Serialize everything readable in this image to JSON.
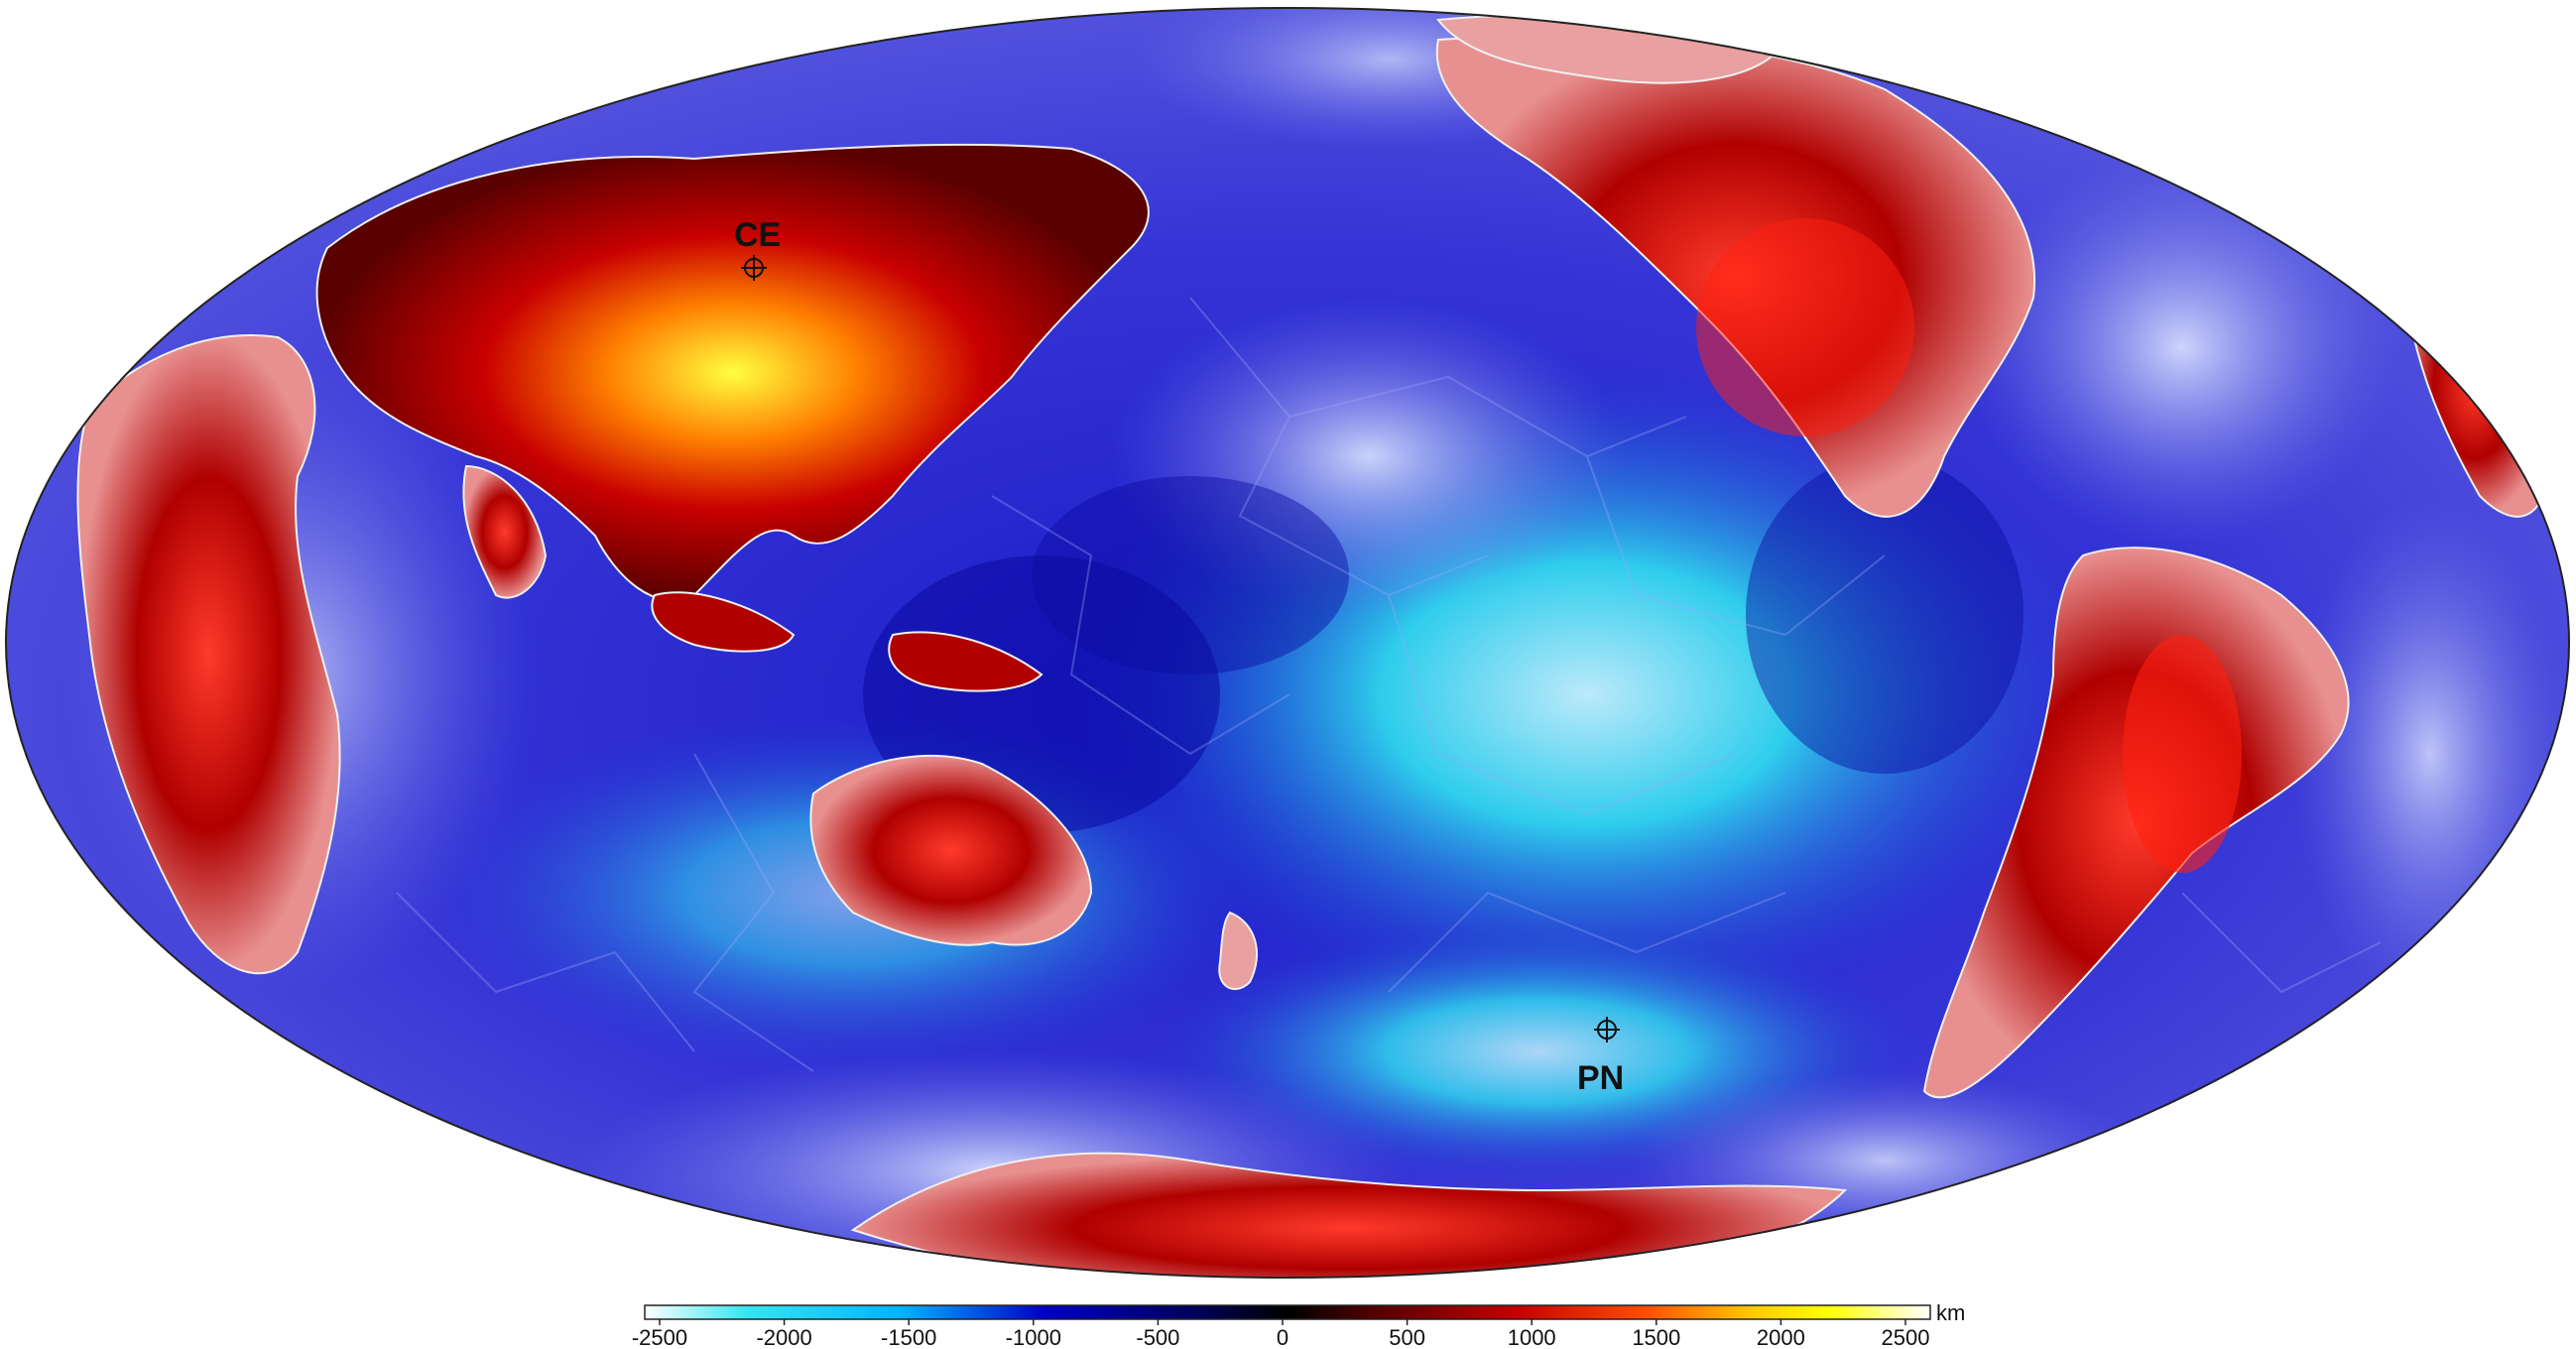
{
  "map": {
    "projection": "Mollweide (Pacific-centred)",
    "markers": [
      {
        "id": "CE",
        "label": "CE"
      },
      {
        "id": "PN",
        "label": "PN"
      }
    ]
  },
  "colorbar": {
    "unit": "km",
    "ticks": [
      "-2500",
      "-2000",
      "-1500",
      "-1000",
      "-500",
      "0",
      "500",
      "1000",
      "1500",
      "2000",
      "2500"
    ],
    "colors": [
      "#ffffff",
      "#33e6f0",
      "#00b4ff",
      "#0000c8",
      "#000050",
      "#000000",
      "#4a0000",
      "#c80000",
      "#ff5000",
      "#ffc800",
      "#ffff00",
      "#ffffff"
    ]
  }
}
